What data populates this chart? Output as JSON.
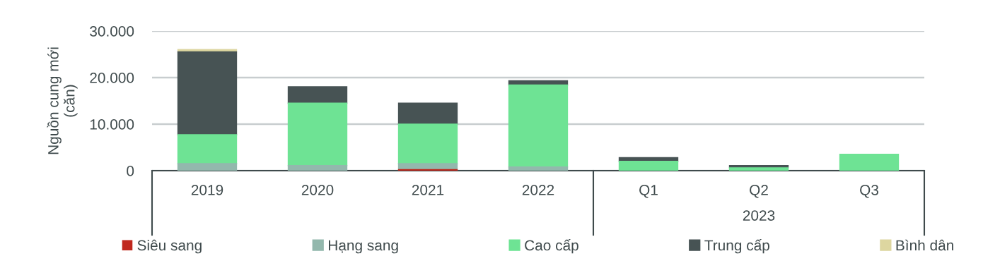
{
  "chart_data": {
    "type": "bar",
    "stacked": true,
    "ylabel": "Nguồn cung mới\n(căn)",
    "categories": [
      "2019",
      "2020",
      "2021",
      "2022",
      "Q1",
      "Q2",
      "Q3"
    ],
    "series": [
      {
        "name": "Siêu sang",
        "color": "#c0281e",
        "values": [
          0,
          0,
          200,
          0,
          0,
          0,
          0
        ]
      },
      {
        "name": "Hạng sang",
        "color": "#93b8ad",
        "values": [
          1500,
          1100,
          1300,
          800,
          0,
          0,
          0
        ]
      },
      {
        "name": "Cao cấp",
        "color": "#6ee394",
        "values": [
          6200,
          13400,
          8500,
          17600,
          2000,
          600,
          3500
        ]
      },
      {
        "name": "Trung cấp",
        "color": "#475354",
        "values": [
          17800,
          3500,
          4500,
          900,
          800,
          500,
          0
        ]
      },
      {
        "name": "Bình dân",
        "color": "#ddd6a0",
        "values": [
          500,
          0,
          0,
          0,
          0,
          0,
          0
        ]
      }
    ],
    "ylim": [
      0,
      30000
    ],
    "yticks": [
      0,
      {
        "value": 10000,
        "label": "10.000"
      },
      {
        "value": 20000,
        "label": "20.000"
      },
      {
        "value": 30000,
        "label": "30.000"
      }
    ],
    "grid": "y",
    "legend": "bottom",
    "annotations": [
      "2023"
    ]
  }
}
